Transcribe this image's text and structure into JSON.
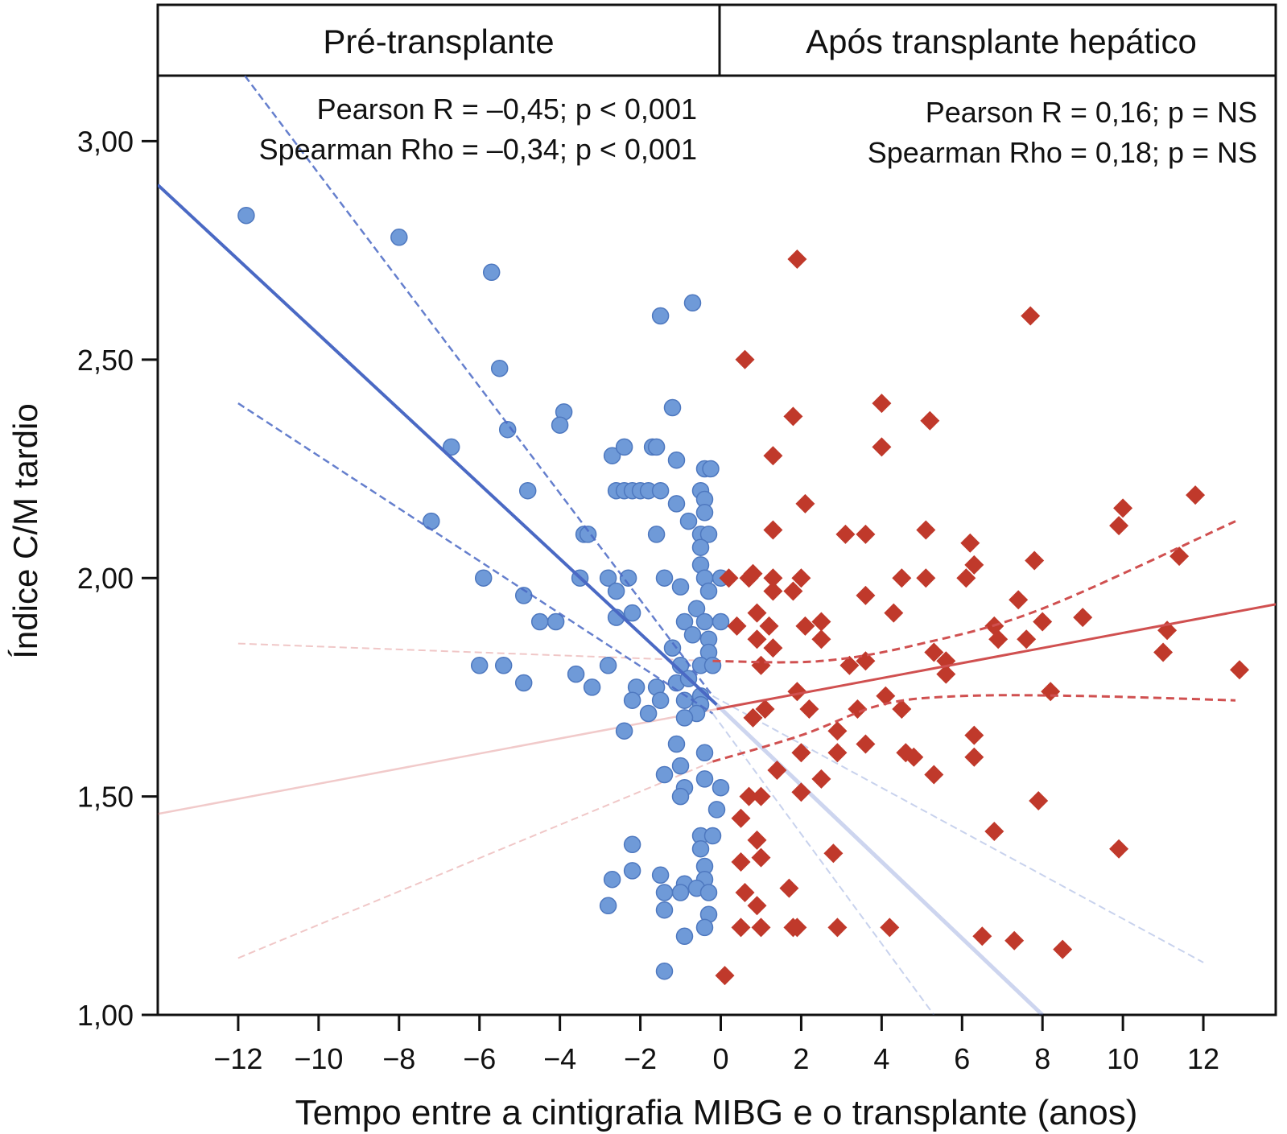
{
  "chart_data": {
    "type": "scatter",
    "xlabel": "Tempo entre a cintigrafia MIBG e o transplante (anos)",
    "ylabel": "Índice C/M tardio",
    "xlim": [
      -14,
      13.8
    ],
    "ylim": [
      1.0,
      3.15
    ],
    "x_ticks": [
      -12,
      -10,
      -8,
      -6,
      -4,
      -2,
      0,
      2,
      4,
      6,
      8,
      10,
      12
    ],
    "x_tick_labels": [
      "−12",
      "−10",
      "−8",
      "−6",
      "−4",
      "−2",
      "0",
      "2",
      "4",
      "6",
      "8",
      "10",
      "12"
    ],
    "y_ticks": [
      1.0,
      1.5,
      2.0,
      2.5,
      3.0
    ],
    "y_tick_labels": [
      "1,00",
      "1,50",
      "2,00",
      "2,50",
      "3,00"
    ],
    "grid": false,
    "colors": {
      "pre": "#6f9ad8",
      "pre_edge": "#4e78bf",
      "post": "#c0392b",
      "pre_fit": "#4a69c4",
      "post_fit": "#d05050"
    },
    "panels": [
      {
        "title": "Pré-transplante",
        "annotations": [
          "Pearson R = –0,45; p < 0,001",
          "Spearman Rho = –0,34; p < 0,001"
        ],
        "marker": "circle",
        "points": [
          [
            -11.8,
            2.83
          ],
          [
            -8,
            2.78
          ],
          [
            -5.7,
            2.7
          ],
          [
            -1.5,
            2.6
          ],
          [
            -0.7,
            2.63
          ],
          [
            -5.5,
            2.48
          ],
          [
            -3.9,
            2.38
          ],
          [
            -4,
            2.35
          ],
          [
            -1.2,
            2.39
          ],
          [
            -5.3,
            2.34
          ],
          [
            -6.7,
            2.3
          ],
          [
            -2.7,
            2.28
          ],
          [
            -2.4,
            2.3
          ],
          [
            -1.7,
            2.3
          ],
          [
            -1.6,
            2.3
          ],
          [
            -1.1,
            2.27
          ],
          [
            -0.4,
            2.25
          ],
          [
            -0.25,
            2.25
          ],
          [
            -2.6,
            2.2
          ],
          [
            -2.4,
            2.2
          ],
          [
            -2.2,
            2.2
          ],
          [
            -2,
            2.2
          ],
          [
            -1.8,
            2.2
          ],
          [
            -1.5,
            2.2
          ],
          [
            -4.8,
            2.2
          ],
          [
            -0.5,
            2.2
          ],
          [
            -0.4,
            2.18
          ],
          [
            -1.1,
            2.17
          ],
          [
            -0.4,
            2.15
          ],
          [
            -0.8,
            2.13
          ],
          [
            -7.2,
            2.13
          ],
          [
            -3.4,
            2.1
          ],
          [
            -3.3,
            2.1
          ],
          [
            -1.6,
            2.1
          ],
          [
            -0.5,
            2.1
          ],
          [
            -0.3,
            2.1
          ],
          [
            -0.5,
            2.07
          ],
          [
            -0.5,
            2.03
          ],
          [
            -0.4,
            2
          ],
          [
            0,
            2
          ],
          [
            -5.9,
            2
          ],
          [
            -3.5,
            2
          ],
          [
            -2.8,
            2
          ],
          [
            -2.3,
            2
          ],
          [
            -1.4,
            2
          ],
          [
            -1,
            1.98
          ],
          [
            -0.3,
            1.97
          ],
          [
            -4.9,
            1.96
          ],
          [
            -2.6,
            1.97
          ],
          [
            -2.2,
            1.92
          ],
          [
            -0.6,
            1.93
          ],
          [
            -4.5,
            1.9
          ],
          [
            -4.1,
            1.9
          ],
          [
            -2.6,
            1.91
          ],
          [
            -0.9,
            1.9
          ],
          [
            -0.4,
            1.9
          ],
          [
            0,
            1.9
          ],
          [
            -0.7,
            1.87
          ],
          [
            -0.3,
            1.86
          ],
          [
            -1.2,
            1.84
          ],
          [
            -0.3,
            1.83
          ],
          [
            -6,
            1.8
          ],
          [
            -5.4,
            1.8
          ],
          [
            -3.6,
            1.78
          ],
          [
            -2.8,
            1.8
          ],
          [
            -1,
            1.8
          ],
          [
            -0.5,
            1.8
          ],
          [
            -0.2,
            1.8
          ],
          [
            -4.9,
            1.76
          ],
          [
            -3.2,
            1.75
          ],
          [
            -2.1,
            1.75
          ],
          [
            -1.6,
            1.75
          ],
          [
            -1.1,
            1.76
          ],
          [
            -0.8,
            1.77
          ],
          [
            -0.5,
            1.73
          ],
          [
            -2.2,
            1.72
          ],
          [
            -1.5,
            1.72
          ],
          [
            -0.9,
            1.72
          ],
          [
            -0.5,
            1.71
          ],
          [
            -1.8,
            1.69
          ],
          [
            -0.6,
            1.69
          ],
          [
            -0.9,
            1.68
          ],
          [
            -2.4,
            1.65
          ],
          [
            -1.1,
            1.62
          ],
          [
            -0.4,
            1.6
          ],
          [
            -1,
            1.57
          ],
          [
            -1.4,
            1.55
          ],
          [
            -0.9,
            1.52
          ],
          [
            -0.4,
            1.54
          ],
          [
            0,
            1.52
          ],
          [
            -1,
            1.5
          ],
          [
            -0.1,
            1.47
          ],
          [
            -0.5,
            1.41
          ],
          [
            -0.2,
            1.41
          ],
          [
            -2.2,
            1.39
          ],
          [
            -0.5,
            1.38
          ],
          [
            -2.2,
            1.33
          ],
          [
            -0.4,
            1.34
          ],
          [
            -2.7,
            1.31
          ],
          [
            -1.5,
            1.32
          ],
          [
            -0.4,
            1.31
          ],
          [
            -0.9,
            1.3
          ],
          [
            -0.6,
            1.29
          ],
          [
            -1,
            1.28
          ],
          [
            -1.4,
            1.28
          ],
          [
            -0.3,
            1.28
          ],
          [
            -2.8,
            1.25
          ],
          [
            -1.4,
            1.24
          ],
          [
            -0.3,
            1.23
          ],
          [
            -0.4,
            1.2
          ],
          [
            -0.9,
            1.18
          ],
          [
            -1.4,
            1.1
          ]
        ],
        "fit_line": [
          [
            -14,
            2.9
          ],
          [
            -0.1,
            1.71
          ]
        ],
        "ci_upper": [
          [
            -12,
            3.17
          ],
          [
            -0.2,
            1.73
          ]
        ],
        "ci_lower": [
          [
            -12,
            2.4
          ],
          [
            -0.2,
            1.69
          ]
        ],
        "fit_line_extended": [
          [
            -0.1,
            1.71
          ],
          [
            8,
            1.0
          ]
        ],
        "ci_upper_extended": [
          [
            -0.2,
            1.73
          ],
          [
            12,
            1.12
          ]
        ],
        "ci_lower_extended": [
          [
            -0.2,
            1.69
          ],
          [
            5.3,
            1.0
          ]
        ]
      },
      {
        "title": "Após transplante hepático",
        "annotations": [
          "Pearson R = 0,16; p = NS",
          "Spearman Rho = 0,18; p = NS"
        ],
        "marker": "diamond",
        "points": [
          [
            1.9,
            2.73
          ],
          [
            7.7,
            2.6
          ],
          [
            0.6,
            2.5
          ],
          [
            4,
            2.4
          ],
          [
            1.8,
            2.37
          ],
          [
            5.2,
            2.36
          ],
          [
            4,
            2.3
          ],
          [
            1.3,
            2.28
          ],
          [
            11.8,
            2.19
          ],
          [
            2.1,
            2.17
          ],
          [
            10,
            2.16
          ],
          [
            9.9,
            2.12
          ],
          [
            1.3,
            2.11
          ],
          [
            3.1,
            2.1
          ],
          [
            3.6,
            2.1
          ],
          [
            5.1,
            2.11
          ],
          [
            6.2,
            2.08
          ],
          [
            11.4,
            2.05
          ],
          [
            6.3,
            2.03
          ],
          [
            7.8,
            2.04
          ],
          [
            0.2,
            2
          ],
          [
            0.8,
            2.01
          ],
          [
            0.7,
            2
          ],
          [
            1.3,
            2
          ],
          [
            2,
            2
          ],
          [
            4.5,
            2
          ],
          [
            5.1,
            2
          ],
          [
            6.1,
            2
          ],
          [
            1.3,
            1.97
          ],
          [
            1.8,
            1.97
          ],
          [
            3.6,
            1.96
          ],
          [
            7.4,
            1.95
          ],
          [
            0.9,
            1.92
          ],
          [
            4.3,
            1.92
          ],
          [
            9,
            1.91
          ],
          [
            0.4,
            1.89
          ],
          [
            1.2,
            1.89
          ],
          [
            2.1,
            1.89
          ],
          [
            2.5,
            1.9
          ],
          [
            6.8,
            1.89
          ],
          [
            8,
            1.9
          ],
          [
            0.9,
            1.86
          ],
          [
            2.5,
            1.86
          ],
          [
            6.9,
            1.86
          ],
          [
            7.6,
            1.86
          ],
          [
            11.1,
            1.88
          ],
          [
            1.3,
            1.84
          ],
          [
            5.3,
            1.83
          ],
          [
            5.6,
            1.81
          ],
          [
            11,
            1.83
          ],
          [
            1,
            1.8
          ],
          [
            3.2,
            1.8
          ],
          [
            3.6,
            1.81
          ],
          [
            5.6,
            1.78
          ],
          [
            12.9,
            1.79
          ],
          [
            1.9,
            1.74
          ],
          [
            4.1,
            1.73
          ],
          [
            8.2,
            1.74
          ],
          [
            1.1,
            1.7
          ],
          [
            2.2,
            1.7
          ],
          [
            3.4,
            1.7
          ],
          [
            4.5,
            1.7
          ],
          [
            0.8,
            1.68
          ],
          [
            2.9,
            1.65
          ],
          [
            6.3,
            1.64
          ],
          [
            3.6,
            1.62
          ],
          [
            2,
            1.6
          ],
          [
            2.9,
            1.6
          ],
          [
            4.6,
            1.6
          ],
          [
            4.8,
            1.59
          ],
          [
            6.3,
            1.59
          ],
          [
            1.4,
            1.56
          ],
          [
            5.3,
            1.55
          ],
          [
            2.5,
            1.54
          ],
          [
            2,
            1.51
          ],
          [
            0.7,
            1.5
          ],
          [
            1,
            1.5
          ],
          [
            7.9,
            1.49
          ],
          [
            0.5,
            1.45
          ],
          [
            6.8,
            1.42
          ],
          [
            0.9,
            1.4
          ],
          [
            2.8,
            1.37
          ],
          [
            9.9,
            1.38
          ],
          [
            1,
            1.36
          ],
          [
            0.5,
            1.35
          ],
          [
            1.7,
            1.29
          ],
          [
            0.6,
            1.28
          ],
          [
            0.9,
            1.25
          ],
          [
            1,
            1.2
          ],
          [
            0.5,
            1.2
          ],
          [
            1.8,
            1.2
          ],
          [
            1.9,
            1.2
          ],
          [
            2.9,
            1.2
          ],
          [
            4.2,
            1.2
          ],
          [
            6.5,
            1.18
          ],
          [
            7.3,
            1.17
          ],
          [
            8.5,
            1.15
          ],
          [
            0.1,
            1.09
          ]
        ],
        "fit_line": [
          [
            -0.1,
            1.7
          ],
          [
            13.8,
            1.94
          ]
        ],
        "ci_upper": [
          [
            -0.2,
            1.81
          ],
          [
            2.5,
            1.81
          ],
          [
            5,
            1.85
          ],
          [
            8,
            1.93
          ],
          [
            12.8,
            2.13
          ]
        ],
        "ci_lower": [
          [
            -0.2,
            1.58
          ],
          [
            2,
            1.64
          ],
          [
            4,
            1.71
          ],
          [
            6,
            1.73
          ],
          [
            9,
            1.73
          ],
          [
            12.8,
            1.72
          ]
        ],
        "fit_line_extended": [
          [
            -14,
            1.46
          ],
          [
            -0.1,
            1.7
          ]
        ],
        "ci_upper_extended": [
          [
            -12,
            1.85
          ],
          [
            -0.2,
            1.81
          ]
        ],
        "ci_lower_extended": [
          [
            -12,
            1.13
          ],
          [
            -0.2,
            1.58
          ]
        ]
      }
    ]
  }
}
